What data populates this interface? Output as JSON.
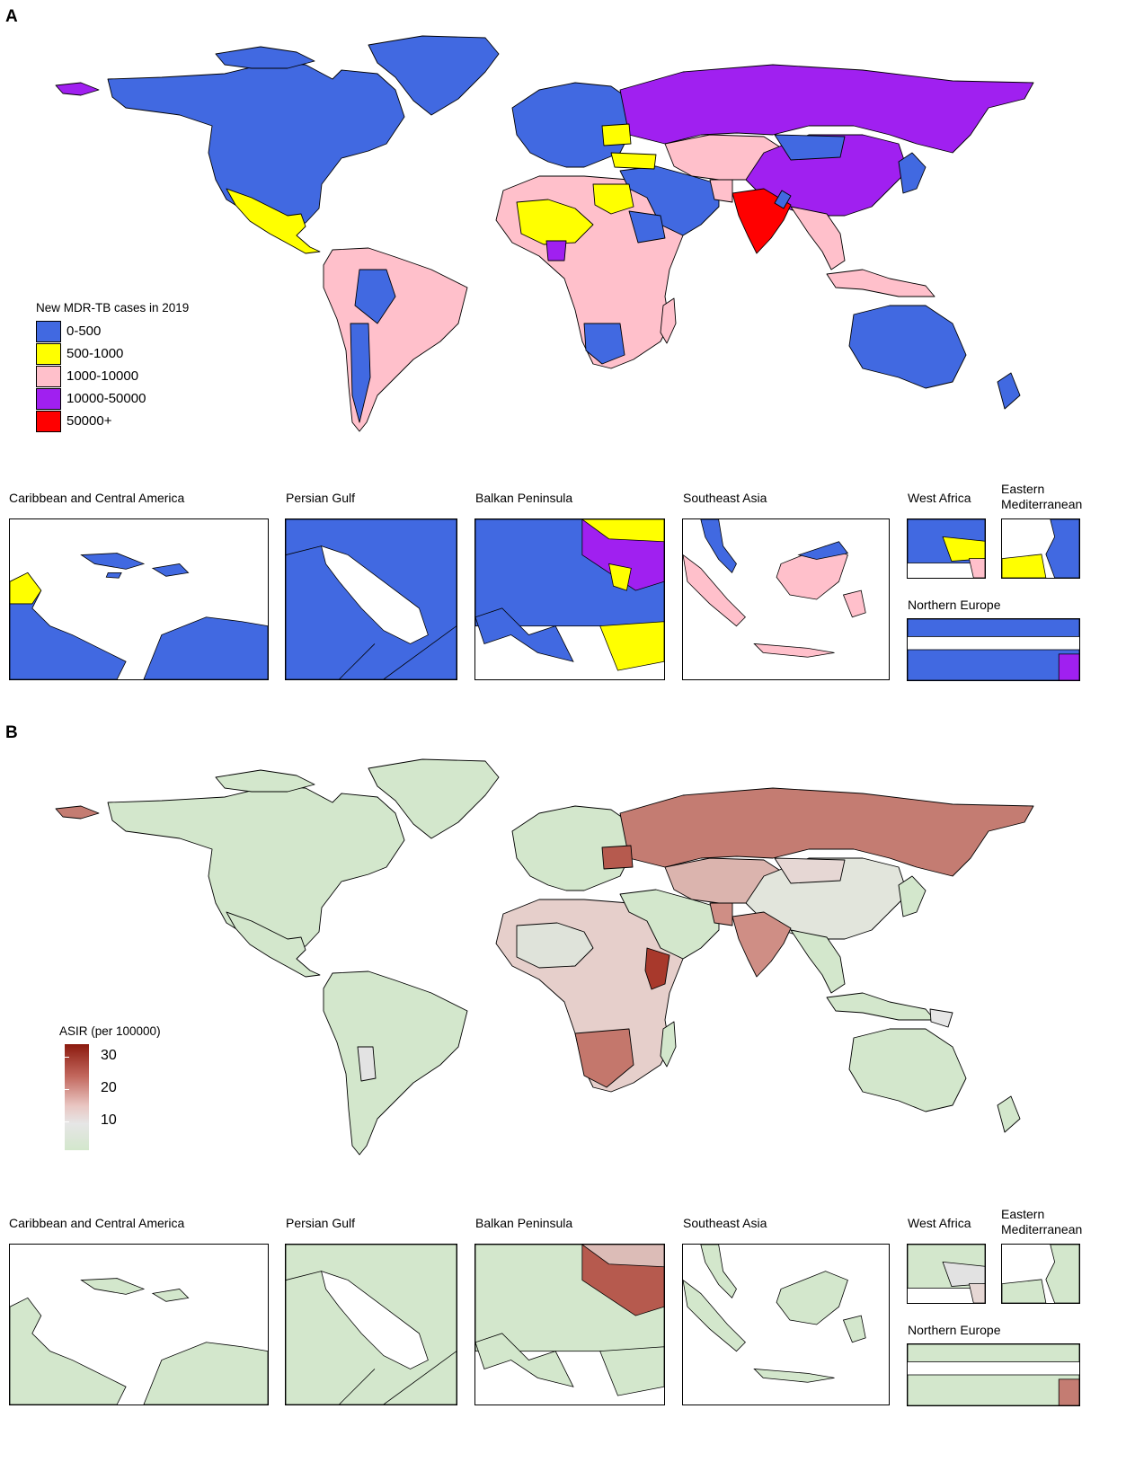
{
  "panel_a": {
    "letter": "A",
    "legend": {
      "title": "New MDR-TB cases in 2019",
      "items": [
        {
          "label": "0-500",
          "color": "#4169e1"
        },
        {
          "label": "500-1000",
          "color": "#ffff00"
        },
        {
          "label": "1000-10000",
          "color": "#ffc0cb"
        },
        {
          "label": "10000-50000",
          "color": "#a020f0"
        },
        {
          "label": "50000+",
          "color": "#ff0000"
        }
      ]
    },
    "insets": [
      {
        "title": "Caribbean and Central America"
      },
      {
        "title": "Persian Gulf"
      },
      {
        "title": "Balkan Peninsula"
      },
      {
        "title": "Southeast Asia"
      },
      {
        "title": "West Africa"
      },
      {
        "title": "Eastern Mediterranean"
      },
      {
        "title": "Northern Europe"
      }
    ]
  },
  "panel_b": {
    "letter": "B",
    "legend": {
      "title": "ASIR (per 100000)",
      "ticks": [
        "30",
        "20",
        "10"
      ],
      "colors": {
        "low": "#d3e7cc",
        "mid": "#e6e6e6",
        "high": "#8b1a0e"
      }
    },
    "insets": [
      {
        "title": "Caribbean and Central America"
      },
      {
        "title": "Persian Gulf"
      },
      {
        "title": "Balkan Peninsula"
      },
      {
        "title": "Southeast Asia"
      },
      {
        "title": "West Africa"
      },
      {
        "title": "Eastern Mediterranean"
      },
      {
        "title": "Northern Europe"
      }
    ]
  }
}
